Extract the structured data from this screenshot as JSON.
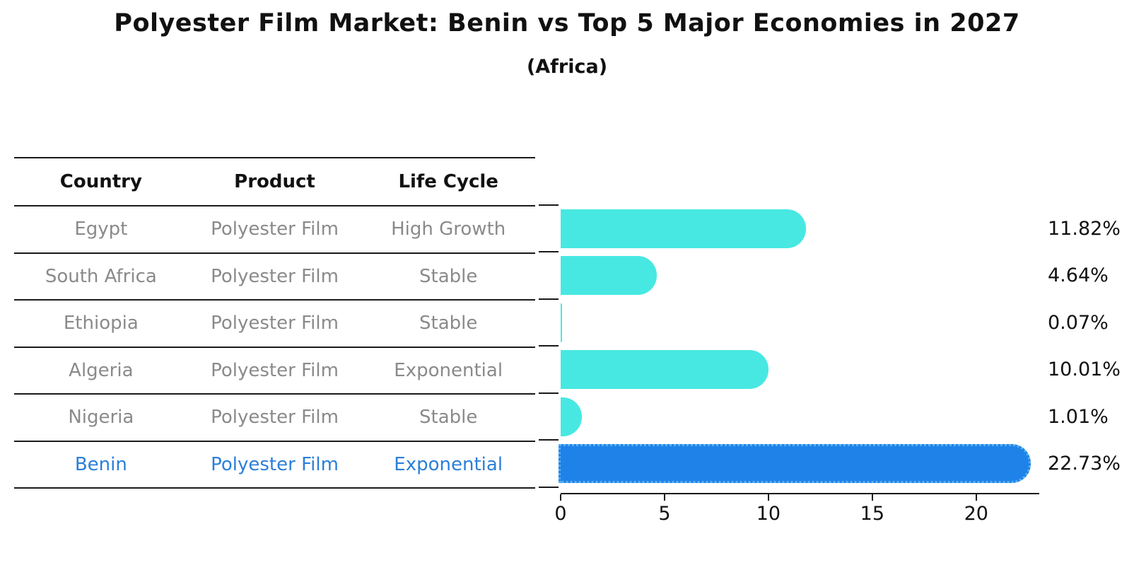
{
  "title": "Polyester Film Market: Benin vs Top 5 Major Economies in 2027",
  "subtitle": "(Africa)",
  "colors": {
    "bar": "#48e8e2",
    "highlight_bar": "#1e82e8",
    "highlight_text": "#2b7fd9",
    "table_text": "#8a8a8a",
    "header_text": "#111111"
  },
  "table": {
    "headers": [
      "Country",
      "Product",
      "Life Cycle"
    ],
    "rows": [
      {
        "country": "Egypt",
        "product": "Polyester Film",
        "life_cycle": "High Growth"
      },
      {
        "country": "South Africa",
        "product": "Polyester Film",
        "life_cycle": "Stable"
      },
      {
        "country": "Ethiopia",
        "product": "Polyester Film",
        "life_cycle": "Stable"
      },
      {
        "country": "Algeria",
        "product": "Polyester Film",
        "life_cycle": "Exponential"
      },
      {
        "country": "Nigeria",
        "product": "Polyester Film",
        "life_cycle": "Stable"
      },
      {
        "country": "Benin",
        "product": "Polyester Film",
        "life_cycle": "Exponential"
      }
    ]
  },
  "chart_data": {
    "type": "bar",
    "orientation": "horizontal",
    "title": "Polyester Film Market: Benin vs Top 5 Major Economies in 2027 (Africa)",
    "categories": [
      "Egypt",
      "South Africa",
      "Ethiopia",
      "Algeria",
      "Nigeria",
      "Benin"
    ],
    "values": [
      11.82,
      4.64,
      0.07,
      10.01,
      1.01,
      22.73
    ],
    "value_labels": [
      "11.82%",
      "4.64%",
      "0.07%",
      "10.01%",
      "1.01%",
      "22.73%"
    ],
    "highlight_index": 5,
    "xlabel": "",
    "ylabel": "",
    "xlim": [
      0,
      23
    ],
    "xticks": [
      0,
      5,
      10,
      15,
      20
    ],
    "grid": false,
    "legend": false
  }
}
